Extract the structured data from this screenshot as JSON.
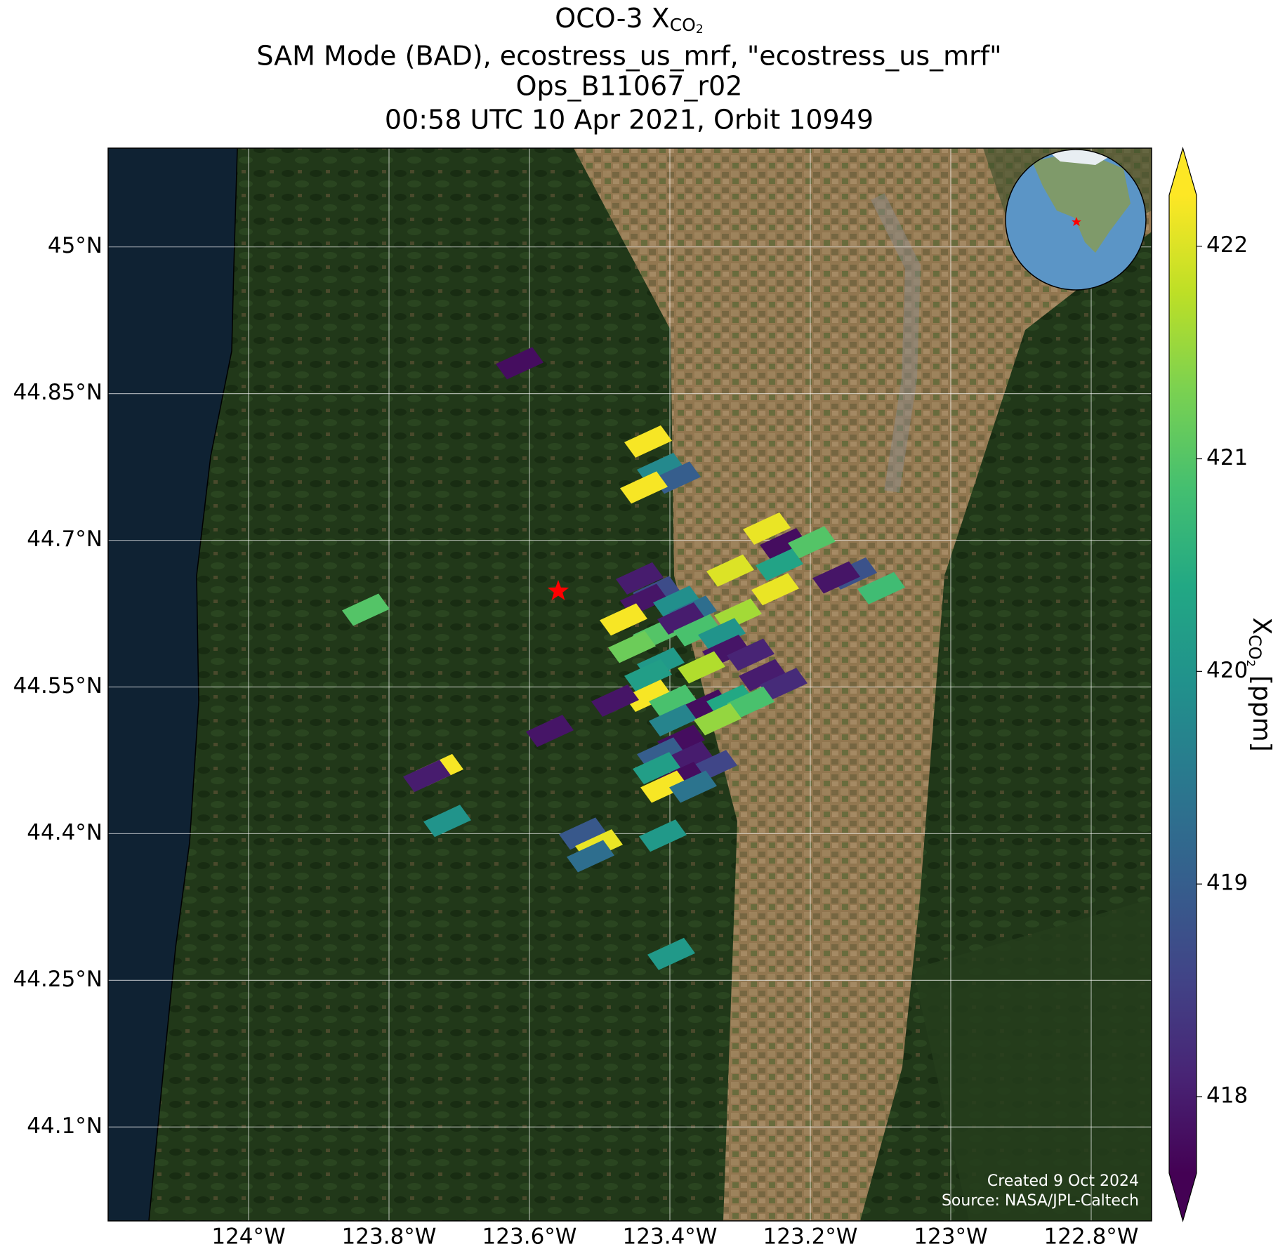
{
  "chart_data": {
    "type": "map",
    "title": {
      "text": "OCO-3 X",
      "sub": "CO",
      "subsub": "2"
    },
    "subtitle": [
      "SAM Mode (BAD), ecostress_us_mrf, \"ecostress_us_mrf\"",
      "Ops_B11067_r02",
      "00:58 UTC 10 Apr 2021, Orbit 10949"
    ],
    "xlim": [
      -124.2,
      -122.714
    ],
    "ylim": [
      44.004,
      45.101
    ],
    "xticks": [
      {
        "value": -124,
        "label": "124°W"
      },
      {
        "value": -123.8,
        "label": "123.8°W"
      },
      {
        "value": -123.6,
        "label": "123.6°W"
      },
      {
        "value": -123.4,
        "label": "123.4°W"
      },
      {
        "value": -123.2,
        "label": "123.2°W"
      },
      {
        "value": -123,
        "label": "123°W"
      },
      {
        "value": -122.8,
        "label": "122.8°W"
      }
    ],
    "yticks": [
      {
        "value": 44.1,
        "label": "44.1°N"
      },
      {
        "value": 44.25,
        "label": "44.25°N"
      },
      {
        "value": 44.4,
        "label": "44.4°N"
      },
      {
        "value": 44.55,
        "label": "44.55°N"
      },
      {
        "value": 44.7,
        "label": "44.7°N"
      },
      {
        "value": 44.85,
        "label": "44.85°N"
      },
      {
        "value": 45,
        "label": "45°N"
      }
    ],
    "grid": true,
    "cmap": "viridis",
    "clim": [
      417.64,
      422.24
    ],
    "lon": [
      -123.614,
      -123.431,
      -123.413,
      -123.39,
      -123.437,
      -123.262,
      -123.238,
      -123.198,
      -123.314,
      -123.244,
      -123.139,
      -123.163,
      -123.25,
      -123.099,
      -123.443,
      -123.419,
      -123.437,
      -123.39,
      -123.367,
      -123.466,
      -123.303,
      -123.833,
      -123.419,
      -123.384,
      -123.361,
      -123.326,
      -123.454,
      -123.32,
      -123.285,
      -123.413,
      -123.355,
      -123.268,
      -123.238,
      -123.431,
      -123.431,
      -123.396,
      -123.349,
      -123.314,
      -123.285,
      -123.478,
      -123.396,
      -123.332,
      -123.571,
      -123.384,
      -123.413,
      -123.373,
      -123.338,
      -123.419,
      -123.384,
      -123.408,
      -123.367,
      -123.728,
      -123.746,
      -123.717,
      -123.524,
      -123.501,
      -123.513,
      -123.41,
      -123.398
    ],
    "lat": [
      44.881,
      44.801,
      44.773,
      44.764,
      44.754,
      44.712,
      44.696,
      44.698,
      44.669,
      44.675,
      44.666,
      44.662,
      44.65,
      44.651,
      44.661,
      44.647,
      44.639,
      44.637,
      44.627,
      44.619,
      44.624,
      44.629,
      44.604,
      44.62,
      44.608,
      44.604,
      44.591,
      44.587,
      44.583,
      44.574,
      44.57,
      44.562,
      44.553,
      44.562,
      44.541,
      44.536,
      44.531,
      44.536,
      44.534,
      44.536,
      44.516,
      44.517,
      44.505,
      44.495,
      44.482,
      44.478,
      44.469,
      44.467,
      44.457,
      44.448,
      44.448,
      44.465,
      44.459,
      44.413,
      44.4,
      44.388,
      44.377,
      44.398,
      44.277
    ],
    "values": [
      417.8,
      422.2,
      419.8,
      419.0,
      422.2,
      422.1,
      417.8,
      421.0,
      422.0,
      420.3,
      418.8,
      417.9,
      422.1,
      420.8,
      418.0,
      418.7,
      417.9,
      419.9,
      419.3,
      422.2,
      421.6,
      421.0,
      421.0,
      418.0,
      420.9,
      420.0,
      421.2,
      417.9,
      418.1,
      420.1,
      421.7,
      418.0,
      418.2,
      420.2,
      422.2,
      420.9,
      417.8,
      420.4,
      420.9,
      417.9,
      419.7,
      421.5,
      417.9,
      417.8,
      419.0,
      418.0,
      418.6,
      420.2,
      417.8,
      422.2,
      419.4,
      422.2,
      418.0,
      420.0,
      418.9,
      422.1,
      419.3,
      420.1,
      420.1
    ],
    "target": {
      "lon": -123.559,
      "lat": 44.648,
      "color": "#ff0000"
    },
    "colorbar": {
      "ticks": [
        418,
        419,
        420,
        421,
        422
      ],
      "label": {
        "text": "X",
        "sub": "CO",
        "subsub": "2",
        "unit": "[ppm]"
      }
    },
    "credits": [
      "Created 9 Oct 2024",
      "Source: NASA/JPL-Caltech"
    ]
  }
}
